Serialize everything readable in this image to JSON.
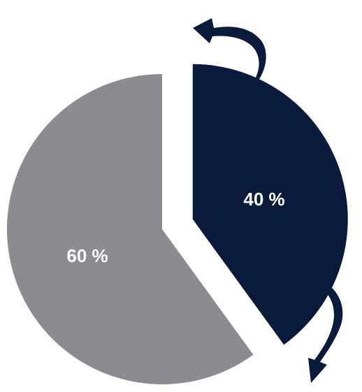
{
  "chart_data": {
    "type": "pie",
    "slices": [
      {
        "label": "40 %",
        "value": 40,
        "color": "#0a1a3a"
      },
      {
        "label": "60 %",
        "value": 60,
        "color": "#8b8c91"
      }
    ]
  },
  "colors": {
    "arrow": "#0a1a3a",
    "label_text": "#ffffff",
    "background": "#ffffff"
  },
  "icons": {
    "top_arrow": "curved-arrow-icon",
    "bottom_arrow": "curved-arrow-icon"
  }
}
